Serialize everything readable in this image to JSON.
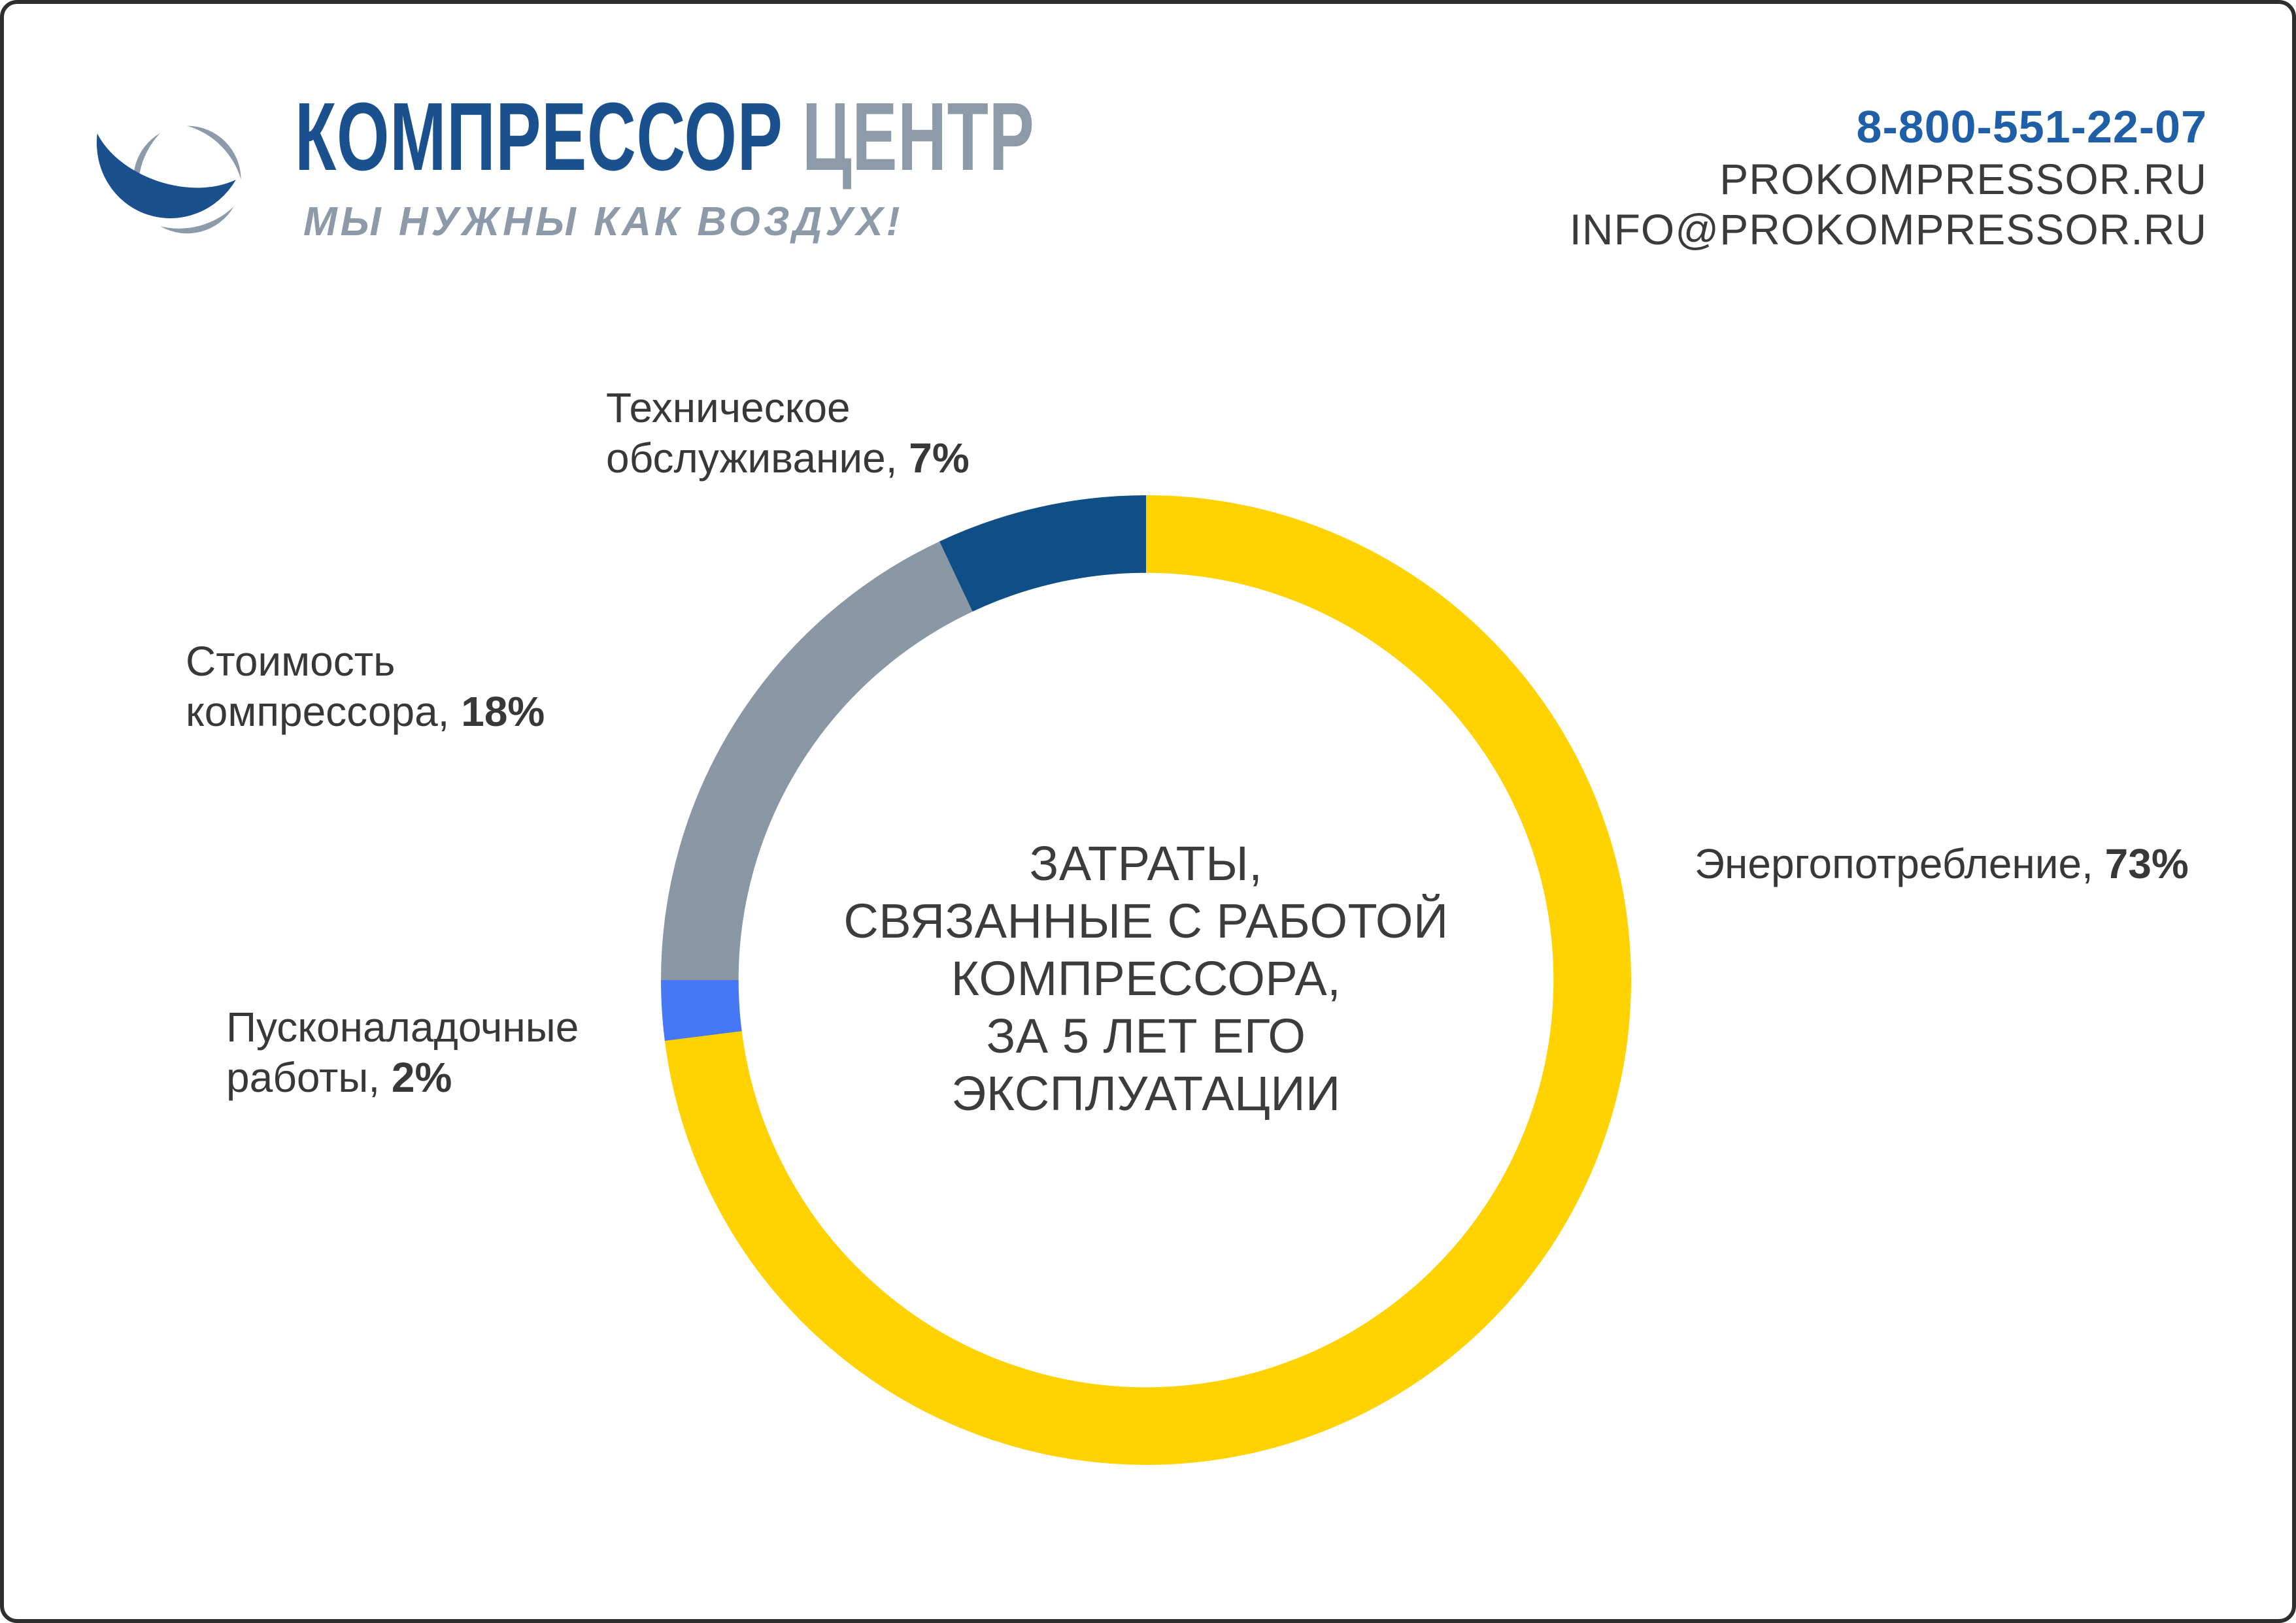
{
  "header": {
    "brand_main": "КОМПРЕССОР",
    "brand_sub": "ЦЕНТР",
    "tagline": "МЫ НУЖНЫ КАК ВОЗДУХ!",
    "phone": "8-800-551-22-07",
    "site": "PROKOMPRESSOR.RU",
    "email": "INFO@PROKOMPRESSOR.RU"
  },
  "colors": {
    "brand_blue": "#1b508f",
    "brand_gray": "#8c9aa9",
    "phone_blue": "#1e5fa8",
    "text_dark": "#383838",
    "border_color": "#2e2e2e",
    "slice_yellow": "#ffd200",
    "slice_blue": "#4678f5",
    "slice_gray": "#8a98a6",
    "slice_navy": "#104e88"
  },
  "chart_data": {
    "type": "pie",
    "subtype": "donut",
    "title_lines": [
      "ЗАТРАТЫ,",
      "СВЯЗАННЫЕ С РАБОТОЙ",
      "КОМПРЕССОРА,",
      "ЗА 5 ЛЕТ ЕГО",
      "ЭКСПЛУАТАЦИИ"
    ],
    "start_angle_deg": 0,
    "direction": "clockwise",
    "donut_hole_ratio": 0.84,
    "legend": "none",
    "slices": [
      {
        "name": "Энергопотребление",
        "value": 73,
        "label": "Энергопотребление, 73%",
        "color": "#ffd200"
      },
      {
        "name": "Пусконаладочные работы",
        "value": 2,
        "label": "Пусконаладочные работы, 2%",
        "color": "#4678f5"
      },
      {
        "name": "Стоимость компрессора",
        "value": 18,
        "label": "Стоимость компрессора, 18%",
        "color": "#8a98a6"
      },
      {
        "name": "Техническое обслуживание",
        "value": 7,
        "label": "Техническое обслуживание, 7%",
        "color": "#104e88"
      }
    ]
  },
  "labels": {
    "maintenance": {
      "line1": "Техническое",
      "line2": "обслуживание, ",
      "pct": "7%"
    },
    "cost": {
      "line1": "Стоимость",
      "line2": "компрессора, ",
      "pct": "18%"
    },
    "commissioning": {
      "line1": "Пусконаладочные",
      "line2": "работы, ",
      "pct": "2%"
    },
    "energy": {
      "line1": "Энергопотребление, ",
      "pct": "73%"
    }
  }
}
